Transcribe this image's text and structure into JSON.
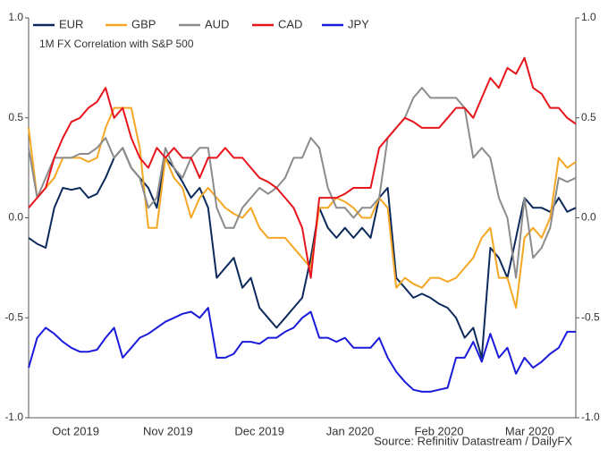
{
  "chart_data": {
    "type": "line",
    "title": "1M FX Correlation with S&P 500",
    "source": "Source: Refinitiv Datastream / DailyFX",
    "x": [
      0,
      1,
      2,
      3,
      4,
      5,
      6,
      7,
      8,
      9,
      10,
      11,
      12,
      13,
      14,
      15,
      16,
      17,
      18,
      19,
      20,
      21,
      22,
      23,
      24,
      25,
      26,
      27,
      28,
      29,
      30,
      31,
      32,
      33,
      34,
      35,
      36,
      37,
      38,
      39,
      40,
      41,
      42,
      43,
      44,
      45,
      46,
      47,
      48,
      49,
      50,
      51,
      52,
      53,
      54,
      55,
      56,
      57,
      58,
      59,
      60,
      61,
      62,
      63,
      64
    ],
    "xlim": [
      0,
      64
    ],
    "xticks": [
      {
        "value": 5.5,
        "label": "Oct 2019"
      },
      {
        "value": 16.3,
        "label": "Nov 2019"
      },
      {
        "value": 27,
        "label": "Dec 2019"
      },
      {
        "value": 37.6,
        "label": "Jan 2020"
      },
      {
        "value": 48,
        "label": "Feb 2020"
      },
      {
        "value": 58.6,
        "label": "Mar 2020"
      }
    ],
    "ylim": [
      -1,
      1
    ],
    "yticks": [
      {
        "value": -1,
        "label": "-1.0"
      },
      {
        "value": -0.5,
        "label": "-0.5"
      },
      {
        "value": 0,
        "label": "0.0"
      },
      {
        "value": 0.5,
        "label": "0.5"
      },
      {
        "value": 1,
        "label": "1.0"
      }
    ],
    "y2lim": [
      -1,
      1
    ],
    "y2ticks": [
      {
        "value": -1,
        "label": "-1.0"
      },
      {
        "value": -0.5,
        "label": "-0.5"
      },
      {
        "value": 0,
        "label": "0.0"
      },
      {
        "value": 0.5,
        "label": "0.5"
      },
      {
        "value": 1,
        "label": "1.0"
      }
    ],
    "grid": false,
    "legend": "top",
    "series": [
      {
        "name": "EUR",
        "color": "#0b2a5b",
        "values": [
          -0.1,
          -0.13,
          -0.15,
          0.05,
          0.15,
          0.14,
          0.15,
          0.1,
          0.12,
          0.2,
          0.3,
          0.35,
          0.25,
          0.2,
          0.15,
          0.05,
          0.3,
          0.25,
          0.18,
          0.1,
          0.15,
          0.05,
          -0.3,
          -0.25,
          -0.2,
          -0.35,
          -0.3,
          -0.45,
          -0.5,
          -0.55,
          -0.5,
          -0.45,
          -0.4,
          -0.2,
          0.05,
          -0.05,
          -0.1,
          -0.05,
          -0.1,
          -0.05,
          -0.1,
          0.1,
          0.15,
          -0.3,
          -0.35,
          -0.4,
          -0.38,
          -0.4,
          -0.43,
          -0.45,
          -0.5,
          -0.6,
          -0.55,
          -0.7,
          -0.15,
          -0.2,
          -0.3,
          -0.1,
          0.1,
          0.05,
          0.05,
          0.03,
          0.1,
          0.03,
          0.05
        ]
      },
      {
        "name": "GBP",
        "color": "#f5a623",
        "values": [
          0.45,
          0.1,
          0.15,
          0.2,
          0.3,
          0.3,
          0.3,
          0.28,
          0.3,
          0.45,
          0.55,
          0.55,
          0.55,
          0.35,
          -0.05,
          -0.05,
          0.3,
          0.2,
          0.15,
          0.0,
          0.1,
          0.15,
          0.1,
          0.05,
          0.02,
          0.0,
          0.05,
          -0.05,
          -0.1,
          -0.1,
          -0.1,
          -0.15,
          -0.2,
          -0.25,
          0.05,
          0.05,
          0.1,
          0.08,
          0.05,
          0.0,
          0.0,
          0.1,
          0.05,
          -0.35,
          -0.3,
          -0.33,
          -0.35,
          -0.3,
          -0.3,
          -0.32,
          -0.3,
          -0.25,
          -0.2,
          -0.1,
          -0.05,
          -0.3,
          -0.3,
          -0.45,
          -0.1,
          -0.05,
          -0.1,
          0.0,
          0.3,
          0.25,
          0.28
        ]
      },
      {
        "name": "AUD",
        "color": "#8c8c8c",
        "values": [
          0.35,
          0.1,
          0.2,
          0.3,
          0.3,
          0.3,
          0.32,
          0.32,
          0.35,
          0.4,
          0.3,
          0.35,
          0.25,
          0.2,
          0.05,
          0.1,
          0.35,
          0.25,
          0.2,
          0.3,
          0.35,
          0.35,
          0.05,
          -0.05,
          -0.05,
          0.05,
          0.1,
          0.15,
          0.12,
          0.15,
          0.2,
          0.3,
          0.3,
          0.4,
          0.35,
          0.15,
          0.05,
          0.05,
          0.0,
          0.05,
          0.05,
          0.1,
          0.4,
          0.45,
          0.5,
          0.6,
          0.65,
          0.6,
          0.6,
          0.6,
          0.6,
          0.55,
          0.3,
          0.35,
          0.3,
          0.1,
          0.0,
          -0.3,
          0.1,
          -0.2,
          -0.15,
          -0.05,
          0.2,
          0.18,
          0.2
        ]
      },
      {
        "name": "CAD",
        "color": "#e8141c",
        "values": [
          0.05,
          0.1,
          0.15,
          0.3,
          0.4,
          0.48,
          0.5,
          0.55,
          0.58,
          0.65,
          0.5,
          0.55,
          0.4,
          0.3,
          0.25,
          0.35,
          0.3,
          0.35,
          0.3,
          0.3,
          0.2,
          0.3,
          0.3,
          0.35,
          0.3,
          0.3,
          0.25,
          0.2,
          0.18,
          0.15,
          0.1,
          0.05,
          -0.05,
          -0.3,
          0.1,
          0.1,
          0.1,
          0.12,
          0.15,
          0.15,
          0.15,
          0.35,
          0.4,
          0.45,
          0.5,
          0.48,
          0.45,
          0.45,
          0.45,
          0.5,
          0.55,
          0.55,
          0.5,
          0.6,
          0.7,
          0.65,
          0.75,
          0.72,
          0.8,
          0.65,
          0.62,
          0.55,
          0.55,
          0.5,
          0.47
        ]
      },
      {
        "name": "JPY",
        "color": "#1a1adc",
        "values": [
          -0.75,
          -0.6,
          -0.55,
          -0.58,
          -0.62,
          -0.65,
          -0.67,
          -0.67,
          -0.66,
          -0.6,
          -0.55,
          -0.7,
          -0.65,
          -0.6,
          -0.58,
          -0.55,
          -0.52,
          -0.5,
          -0.48,
          -0.47,
          -0.5,
          -0.45,
          -0.7,
          -0.7,
          -0.68,
          -0.62,
          -0.62,
          -0.63,
          -0.6,
          -0.6,
          -0.57,
          -0.55,
          -0.5,
          -0.47,
          -0.6,
          -0.6,
          -0.62,
          -0.6,
          -0.65,
          -0.65,
          -0.65,
          -0.6,
          -0.7,
          -0.77,
          -0.82,
          -0.86,
          -0.87,
          -0.87,
          -0.86,
          -0.85,
          -0.7,
          -0.7,
          -0.62,
          -0.72,
          -0.58,
          -0.7,
          -0.65,
          -0.78,
          -0.7,
          -0.75,
          -0.72,
          -0.68,
          -0.65,
          -0.57,
          -0.57
        ]
      }
    ]
  }
}
